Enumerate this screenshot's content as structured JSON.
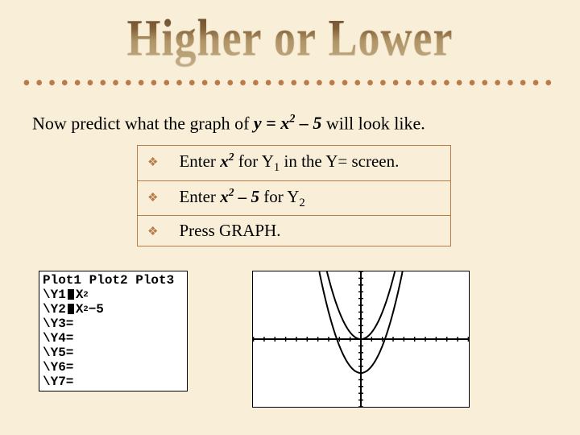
{
  "title_words": [
    "Higher",
    "or",
    "Lower"
  ],
  "intro": {
    "prefix": "Now predict what the graph of  ",
    "eq_lhs": "y = x",
    "eq_sup": "2",
    "eq_rhs": " – 5",
    "suffix": "  will look like."
  },
  "bullets": [
    {
      "pre": "Enter ",
      "expr_var": "x",
      "expr_sup": "2",
      "mid": " for Y",
      "sub": "1",
      "post": " in the Y= screen."
    },
    {
      "pre": "Enter ",
      "expr_var": "x",
      "expr_sup": "2",
      "expr_tail": " – 5",
      "mid": " for Y",
      "sub": "2",
      "post": ""
    },
    {
      "pre": "Press GRAPH."
    }
  ],
  "calc_screen": {
    "header": "Plot1 Plot2 Plot3",
    "rows": [
      {
        "label": "\\Y1",
        "rhs": "X",
        "sup": "2"
      },
      {
        "label": "\\Y2",
        "rhs": "X",
        "sup": "2",
        "tail": "−5"
      },
      {
        "label": "\\Y3="
      },
      {
        "label": "\\Y4="
      },
      {
        "label": "\\Y5="
      },
      {
        "label": "\\Y6="
      },
      {
        "label": "\\Y7="
      }
    ]
  },
  "graph": {
    "type": "line",
    "background_color": "#ffffff",
    "axis_color": "#000000",
    "tick_color": "#000000",
    "stroke_width": 2,
    "xlim": [
      -10,
      10
    ],
    "ylim": [
      -10,
      10
    ],
    "xtick_step": 1,
    "ytick_step": 1,
    "series": [
      {
        "name": "y=x^2",
        "color": "#000000",
        "points": [
          [
            -3.16,
            10
          ],
          [
            -3,
            9
          ],
          [
            -2,
            4
          ],
          [
            -1,
            1
          ],
          [
            0,
            0
          ],
          [
            1,
            1
          ],
          [
            2,
            4
          ],
          [
            3,
            9
          ],
          [
            3.16,
            10
          ]
        ]
      },
      {
        "name": "y=x^2-5",
        "color": "#000000",
        "points": [
          [
            -3.87,
            10
          ],
          [
            -3,
            4
          ],
          [
            -2,
            -1
          ],
          [
            -1,
            -4
          ],
          [
            0,
            -5
          ],
          [
            1,
            -4
          ],
          [
            2,
            -1
          ],
          [
            3,
            4
          ],
          [
            3.87,
            10
          ]
        ]
      }
    ]
  },
  "colors": {
    "background": "#f9efd9",
    "accent": "#b87b4a",
    "text": "#000000"
  }
}
